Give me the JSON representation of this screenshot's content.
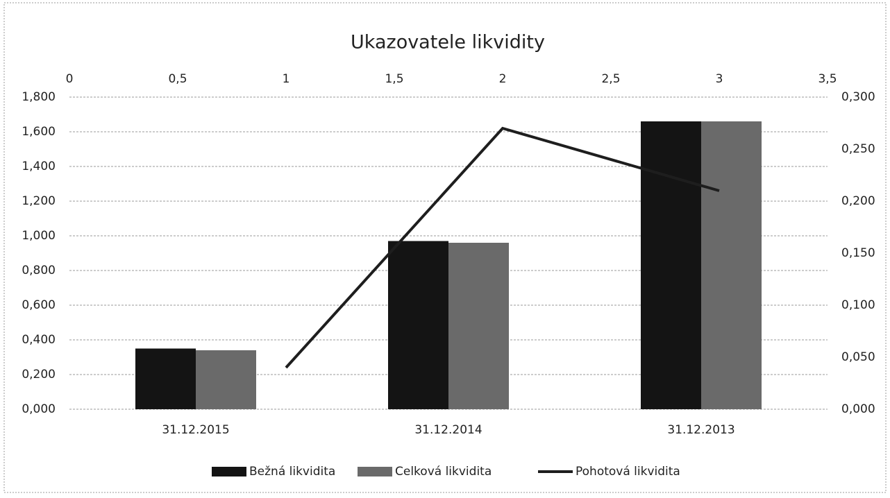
{
  "chart_data": {
    "type": "bar",
    "title": "Ukazovatele likvidity",
    "categories": [
      "31.12.2015",
      "31.12.2014",
      "31.12.2013"
    ],
    "series": [
      {
        "name": "Bežná likvidita",
        "color": "#141414",
        "values": [
          0.35,
          0.97,
          1.66
        ]
      },
      {
        "name": "Celková likvidita",
        "color": "#6a6a6a",
        "values": [
          0.34,
          0.96,
          1.66
        ]
      },
      {
        "name": "Pohotová likvidita",
        "type": "line",
        "color": "#1e1e1e",
        "axis": "y2",
        "x": [
          1,
          2,
          3
        ],
        "values": [
          0.04,
          0.27,
          0.21
        ]
      }
    ],
    "ylim": [
      0,
      1.8
    ],
    "yticks": [
      {
        "value": 0,
        "label": "0,000"
      },
      {
        "value": 0.2,
        "label": "0,200"
      },
      {
        "value": 0.4,
        "label": "0,400"
      },
      {
        "value": 0.6,
        "label": "0,600"
      },
      {
        "value": 0.8,
        "label": "0,800"
      },
      {
        "value": 1,
        "label": "1,000"
      },
      {
        "value": 1.2,
        "label": "1,200"
      },
      {
        "value": 1.4,
        "label": "1,400"
      },
      {
        "value": 1.6,
        "label": "1,600"
      },
      {
        "value": 1.8,
        "label": "1,800"
      }
    ],
    "y2lim": [
      0,
      0.3
    ],
    "y2ticks": [
      {
        "value": 0,
        "label": "0,000"
      },
      {
        "value": 0.05,
        "label": "0,050"
      },
      {
        "value": 0.1,
        "label": "0,100"
      },
      {
        "value": 0.15,
        "label": "0,150"
      },
      {
        "value": 0.2,
        "label": "0,200"
      },
      {
        "value": 0.25,
        "label": "0,250"
      },
      {
        "value": 0.3,
        "label": "0,300"
      }
    ],
    "x2lim": [
      0,
      3.5
    ],
    "x2ticks": [
      0,
      {
        "value": 0.5,
        "label": "0,5"
      },
      1,
      {
        "value": 1.5,
        "label": "1,5"
      },
      2,
      {
        "value": 2.5,
        "label": "2,5"
      },
      3,
      {
        "value": 3.5,
        "label": "3,5"
      }
    ],
    "grid": true,
    "legend": "bottom"
  }
}
